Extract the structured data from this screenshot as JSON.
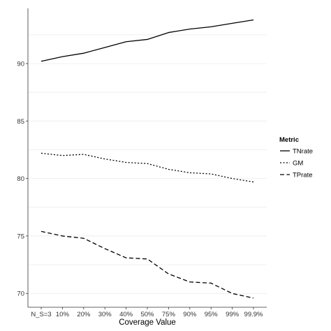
{
  "chart_data": {
    "type": "line",
    "title": "",
    "xlabel": "Coverage Value",
    "ylabel": "",
    "categories": [
      "N_S=3",
      "10%",
      "20%",
      "30%",
      "40%",
      "50%",
      "75%",
      "90%",
      "95%",
      "99%",
      "99.9%"
    ],
    "yticks": [
      70,
      75,
      80,
      85,
      90
    ],
    "ylim": [
      68.8,
      94.8
    ],
    "grid": true,
    "legend": {
      "title": "Metric",
      "placement": "right"
    },
    "series": [
      {
        "name": "TNrate",
        "style": "solid",
        "values": [
          90.2,
          90.6,
          90.9,
          91.4,
          91.9,
          92.1,
          92.7,
          93.0,
          93.2,
          93.5,
          93.8
        ]
      },
      {
        "name": "GM",
        "style": "dotted",
        "values": [
          82.2,
          82.0,
          82.1,
          81.7,
          81.4,
          81.3,
          80.8,
          80.5,
          80.4,
          80.0,
          79.7
        ]
      },
      {
        "name": "TPrate",
        "style": "dashed",
        "values": [
          75.4,
          75.0,
          74.8,
          73.9,
          73.1,
          73.0,
          71.7,
          71.0,
          70.9,
          70.0,
          69.6
        ]
      }
    ],
    "colors": {
      "line": "#000000",
      "grid": "#ebebeb",
      "axis": "#333333"
    }
  }
}
